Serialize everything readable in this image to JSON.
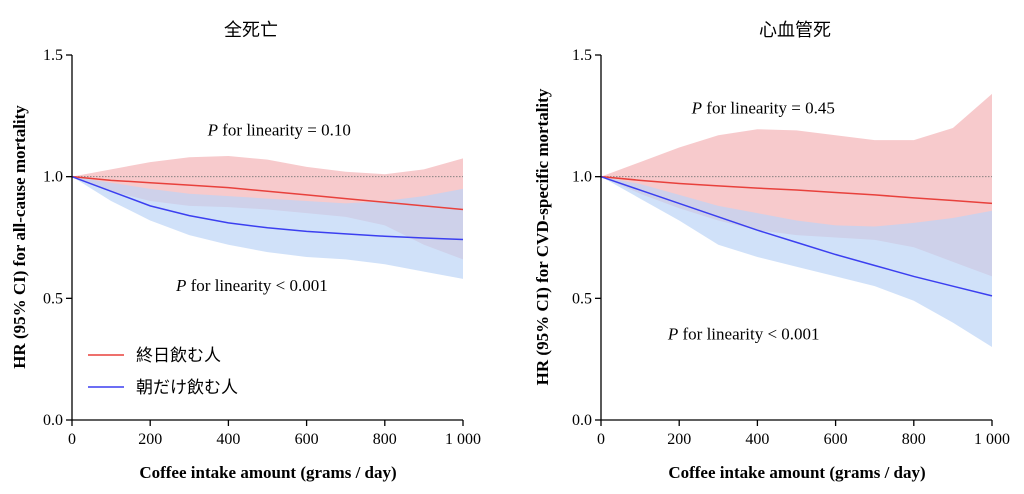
{
  "chart_data": [
    {
      "type": "line",
      "title": "全死亡",
      "xlabel": "Coffee intake amount (grams / day)",
      "ylabel": "HR (95% CI) for all-cause mortality",
      "xlim": [
        0,
        1000
      ],
      "ylim": [
        0,
        1.5
      ],
      "xticks": [
        0,
        200,
        400,
        600,
        800,
        1000
      ],
      "xtick_labels": [
        "0",
        "200",
        "400",
        "600",
        "800",
        "1 000"
      ],
      "yticks": [
        0,
        0.5,
        1.0,
        1.5
      ],
      "ytick_labels": [
        "0.0",
        "0.5",
        "1.0",
        "1.5"
      ],
      "reference_line": 1.0,
      "annotations": [
        {
          "text_prefix": "P",
          "text_rest": " for linearity = 0.10",
          "x": 530,
          "y": 1.17
        },
        {
          "text_prefix": "P",
          "text_rest": " for linearity < 0.001",
          "x": 460,
          "y": 0.53
        }
      ],
      "series": [
        {
          "name": "終日飲む人",
          "color": "#e8413c",
          "band_color": "#f4b3b6",
          "x": [
            0,
            100,
            200,
            300,
            400,
            500,
            600,
            700,
            800,
            900,
            1000
          ],
          "y": [
            1.0,
            0.985,
            0.975,
            0.965,
            0.955,
            0.94,
            0.925,
            0.91,
            0.895,
            0.88,
            0.865
          ],
          "upper": [
            1.0,
            1.03,
            1.06,
            1.08,
            1.085,
            1.07,
            1.04,
            1.02,
            1.01,
            1.03,
            1.075
          ],
          "lower": [
            1.0,
            0.94,
            0.9,
            0.88,
            0.875,
            0.865,
            0.85,
            0.835,
            0.8,
            0.72,
            0.66
          ]
        },
        {
          "name": "朝だけ飲む人",
          "color": "#3b3ff0",
          "band_color": "#bcd4f6",
          "x": [
            0,
            100,
            200,
            300,
            400,
            500,
            600,
            700,
            800,
            900,
            1000
          ],
          "y": [
            1.0,
            0.94,
            0.88,
            0.84,
            0.81,
            0.79,
            0.775,
            0.765,
            0.755,
            0.748,
            0.742
          ],
          "upper": [
            1.0,
            0.975,
            0.95,
            0.93,
            0.92,
            0.91,
            0.9,
            0.89,
            0.9,
            0.92,
            0.95
          ],
          "lower": [
            1.0,
            0.9,
            0.82,
            0.76,
            0.72,
            0.69,
            0.67,
            0.66,
            0.64,
            0.61,
            0.58
          ]
        }
      ]
    },
    {
      "type": "line",
      "title": "心血管死",
      "xlabel": "Coffee intake amount (grams / day)",
      "ylabel": "HR (95% CI) for CVD-specific mortality",
      "xlim": [
        0,
        1000
      ],
      "ylim": [
        0,
        1.5
      ],
      "xticks": [
        0,
        200,
        400,
        600,
        800,
        1000
      ],
      "xtick_labels": [
        "0",
        "200",
        "400",
        "600",
        "800",
        "1 000"
      ],
      "yticks": [
        0,
        0.5,
        1.0,
        1.5
      ],
      "ytick_labels": [
        "0.0",
        "0.5",
        "1.0",
        "1.5"
      ],
      "reference_line": 1.0,
      "annotations": [
        {
          "text_prefix": "P",
          "text_rest": " for linearity = 0.45",
          "x": 415,
          "y": 1.26
        },
        {
          "text_prefix": "P",
          "text_rest": " for linearity < 0.001",
          "x": 365,
          "y": 0.33
        }
      ],
      "series": [
        {
          "name": "終日飲む人",
          "color": "#e8413c",
          "band_color": "#f4b3b6",
          "x": [
            0,
            100,
            200,
            300,
            400,
            500,
            600,
            700,
            800,
            900,
            1000
          ],
          "y": [
            1.0,
            0.985,
            0.972,
            0.962,
            0.953,
            0.945,
            0.935,
            0.925,
            0.913,
            0.902,
            0.89
          ],
          "upper": [
            1.0,
            1.06,
            1.12,
            1.17,
            1.195,
            1.19,
            1.17,
            1.15,
            1.15,
            1.2,
            1.34
          ],
          "lower": [
            1.0,
            0.93,
            0.87,
            0.82,
            0.78,
            0.76,
            0.75,
            0.74,
            0.71,
            0.65,
            0.59
          ]
        },
        {
          "name": "朝だけ飲む人",
          "color": "#3b3ff0",
          "band_color": "#bcd4f6",
          "x": [
            0,
            100,
            200,
            300,
            400,
            500,
            600,
            700,
            800,
            900,
            1000
          ],
          "y": [
            1.0,
            0.945,
            0.89,
            0.835,
            0.78,
            0.73,
            0.68,
            0.635,
            0.59,
            0.55,
            0.51
          ],
          "upper": [
            1.0,
            0.97,
            0.925,
            0.88,
            0.85,
            0.82,
            0.8,
            0.795,
            0.81,
            0.83,
            0.86
          ],
          "lower": [
            1.0,
            0.91,
            0.82,
            0.72,
            0.67,
            0.63,
            0.59,
            0.55,
            0.49,
            0.4,
            0.3
          ]
        }
      ]
    }
  ],
  "legend": {
    "items": [
      {
        "label": "終日飲む人",
        "color": "#e8413c"
      },
      {
        "label": "朝だけ飲む人",
        "color": "#3b3ff0"
      }
    ],
    "placement": "bottom-left of left panel"
  }
}
